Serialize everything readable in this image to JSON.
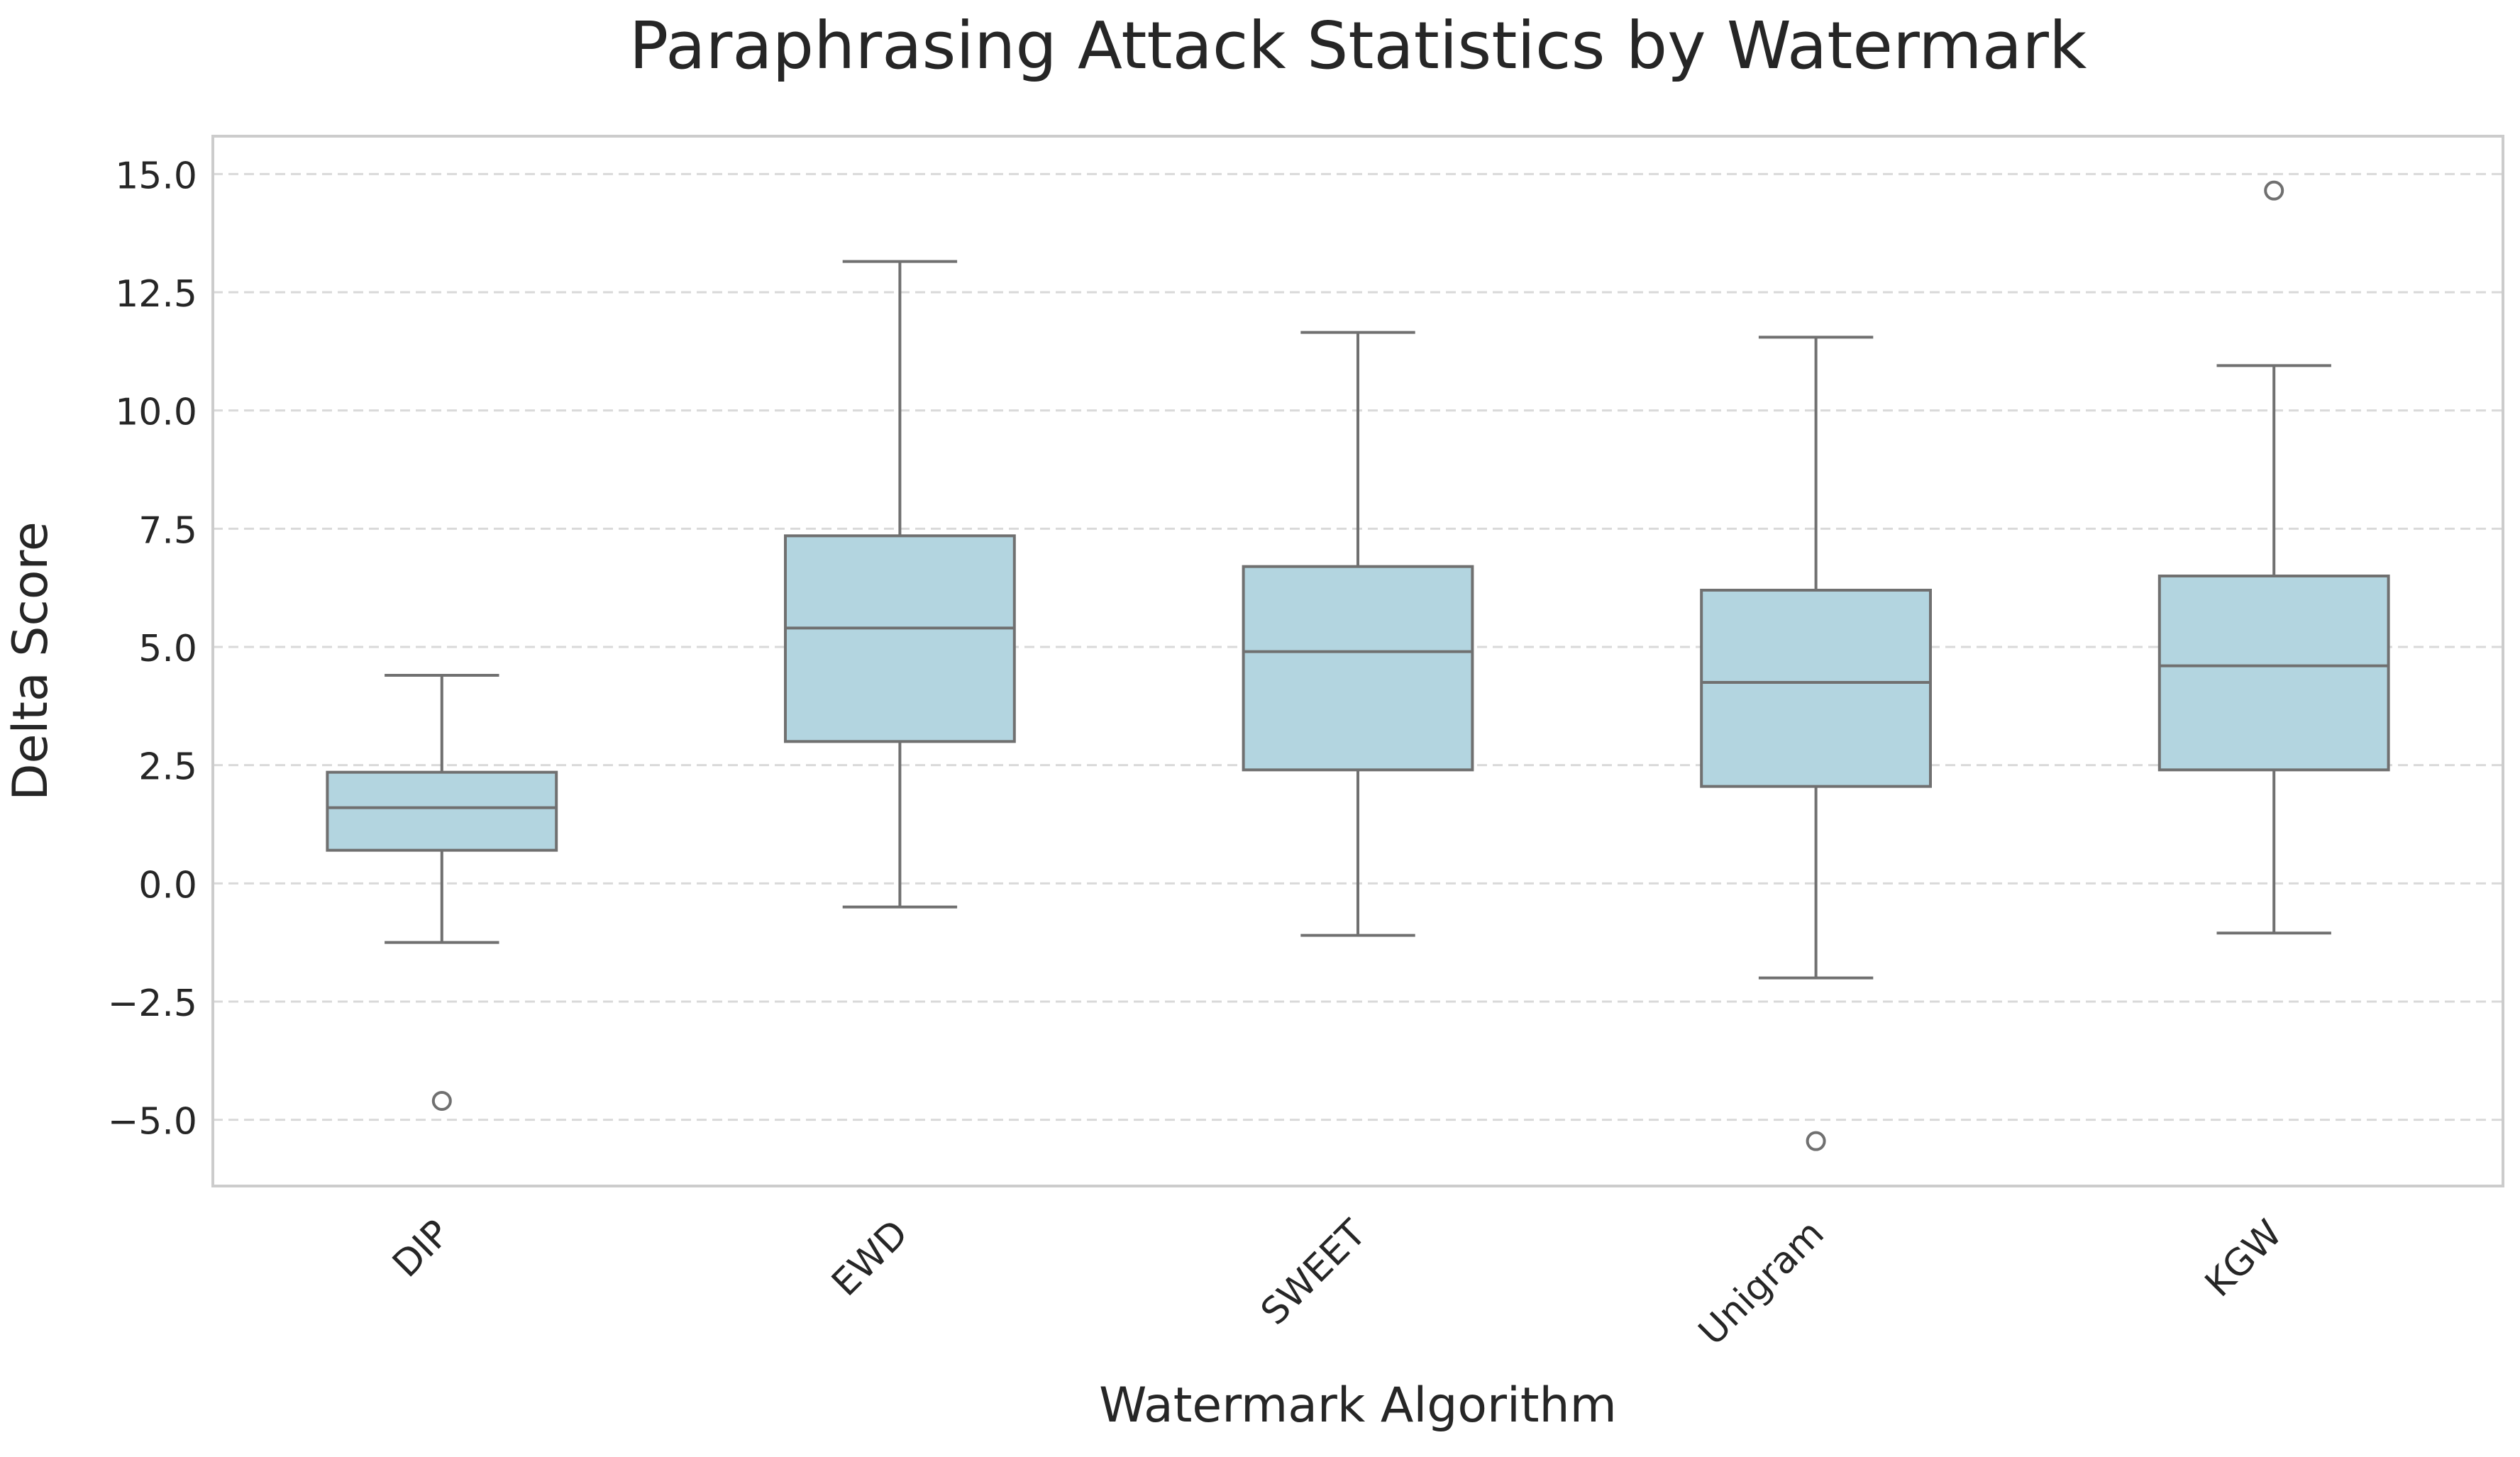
{
  "chart_data": {
    "type": "box",
    "title": "Paraphrasing Attack Statistics by Watermark",
    "xlabel": "Watermark Algorithm",
    "ylabel": "Delta Score",
    "ylim": [
      -6.4,
      15.8
    ],
    "yticks": [
      15.0,
      12.5,
      10.0,
      7.5,
      5.0,
      2.5,
      0.0,
      -2.5,
      -5.0
    ],
    "ytick_labels": [
      "15.0",
      "12.5",
      "10.0",
      "7.5",
      "5.0",
      "2.5",
      "0.0",
      "−2.5",
      "−5.0"
    ],
    "categories": [
      "DIP",
      "EWD",
      "SWEET",
      "Unigram",
      "KGW"
    ],
    "boxes": [
      {
        "category": "DIP",
        "whisker_low": -1.25,
        "q1": 0.7,
        "median": 1.6,
        "q3": 2.35,
        "whisker_high": 4.4,
        "outliers": [
          -4.6
        ]
      },
      {
        "category": "EWD",
        "whisker_low": -0.5,
        "q1": 3.0,
        "median": 5.4,
        "q3": 7.35,
        "whisker_high": 13.15,
        "outliers": []
      },
      {
        "category": "SWEET",
        "whisker_low": -1.1,
        "q1": 2.4,
        "median": 4.9,
        "q3": 6.7,
        "whisker_high": 11.65,
        "outliers": []
      },
      {
        "category": "Unigram",
        "whisker_low": -2.0,
        "q1": 2.05,
        "median": 4.25,
        "q3": 6.2,
        "whisker_high": 11.55,
        "outliers": [
          -5.45
        ]
      },
      {
        "category": "KGW",
        "whisker_low": -1.05,
        "q1": 2.4,
        "median": 4.6,
        "q3": 6.5,
        "whisker_high": 10.95,
        "outliers": [
          14.65
        ]
      }
    ],
    "grid": "y-dashed",
    "colors": {
      "box_fill": "#b3d5e0",
      "line": "#707070",
      "grid": "#d9d9d9",
      "frame": "#cccccc",
      "text": "#262626"
    }
  }
}
